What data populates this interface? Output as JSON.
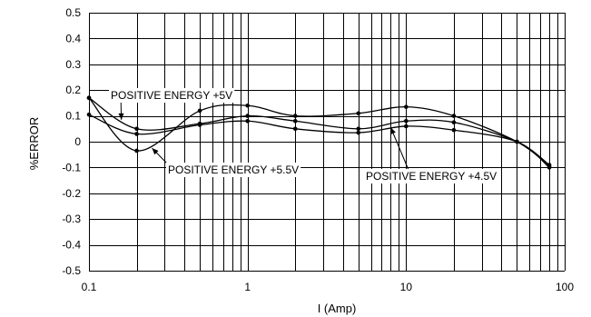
{
  "chart_data": {
    "type": "line",
    "title": "",
    "xlabel": "I (Amp)",
    "ylabel": "%ERROR",
    "xscale": "log",
    "xlim": [
      0.1,
      100
    ],
    "ylim": [
      -0.5,
      0.5
    ],
    "grid": true,
    "x_tick_labels": [
      {
        "value": 0.1,
        "label": "0.1"
      },
      {
        "value": 1,
        "label": "1"
      },
      {
        "value": 10,
        "label": "10"
      },
      {
        "value": 100,
        "label": "100"
      }
    ],
    "y_tick_labels": [
      {
        "value": 0.5,
        "label": "0.5"
      },
      {
        "value": 0.4,
        "label": "0.4"
      },
      {
        "value": 0.3,
        "label": "0.3"
      },
      {
        "value": 0.2,
        "label": "0.2"
      },
      {
        "value": 0.1,
        "label": "0.1"
      },
      {
        "value": 0,
        "label": "0"
      },
      {
        "value": -0.1,
        "label": "-0.1"
      },
      {
        "value": -0.2,
        "label": "-0.2"
      },
      {
        "value": -0.3,
        "label": "-0.3"
      },
      {
        "value": -0.4,
        "label": "-0.4"
      },
      {
        "value": -0.5,
        "label": "-0.5"
      }
    ],
    "x": [
      0.1,
      0.2,
      0.5,
      1,
      2,
      5,
      10,
      20,
      50,
      80
    ],
    "series": [
      {
        "name": "POSITIVE ENERGY +5V",
        "values": [
          0.17,
          0.05,
          0.07,
          0.1,
          0.08,
          0.05,
          0.08,
          0.075,
          0.0,
          -0.09
        ]
      },
      {
        "name": "POSITIVE ENERGY +5.5V",
        "values": [
          0.17,
          -0.035,
          0.12,
          0.14,
          0.1,
          0.11,
          0.135,
          0.1,
          0.0,
          -0.095
        ]
      },
      {
        "name": "POSITIVE ENERGY +4.5V",
        "values": [
          0.105,
          0.03,
          0.065,
          0.08,
          0.05,
          0.035,
          0.06,
          0.045,
          0.0,
          -0.1
        ]
      }
    ],
    "annotations": [
      {
        "text": "POSITIVE ENERGY +5V",
        "series": 0,
        "arrow_to": {
          "x": 0.16,
          "y": 0.085
        }
      },
      {
        "text": "POSITIVE ENERGY +5.5V",
        "series": 1,
        "arrow_to": {
          "x": 0.25,
          "y": -0.025
        }
      },
      {
        "text": "POSITIVE ENERGY +4.5V",
        "series": 2,
        "arrow_to": {
          "x": 8.0,
          "y": 0.055
        }
      }
    ]
  }
}
